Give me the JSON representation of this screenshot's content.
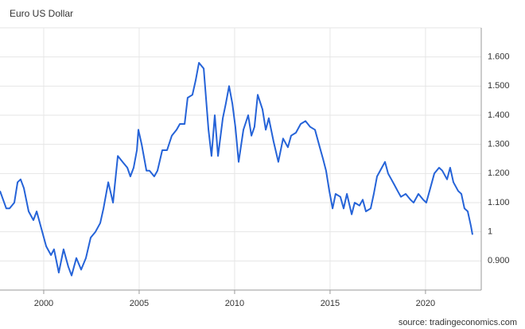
{
  "chart_data": {
    "type": "line",
    "title": "Euro US Dollar",
    "source": "source: tradingeconomics.com",
    "x": [
      1997.71,
      1998.04,
      1998.21,
      1998.46,
      1998.63,
      1998.79,
      1998.96,
      1999.21,
      1999.46,
      1999.63,
      1999.88,
      2000.13,
      2000.38,
      2000.54,
      2000.79,
      2001.04,
      2001.29,
      2001.46,
      2001.71,
      2001.96,
      2002.21,
      2002.46,
      2002.71,
      2002.96,
      2003.13,
      2003.38,
      2003.63,
      2003.88,
      2004.13,
      2004.38,
      2004.54,
      2004.71,
      2004.88,
      2004.96,
      2005.13,
      2005.38,
      2005.54,
      2005.79,
      2005.96,
      2006.21,
      2006.46,
      2006.71,
      2006.96,
      2007.13,
      2007.38,
      2007.54,
      2007.79,
      2007.96,
      2008.13,
      2008.38,
      2008.63,
      2008.79,
      2008.96,
      2009.13,
      2009.38,
      2009.54,
      2009.71,
      2009.88,
      2010.04,
      2010.21,
      2010.46,
      2010.71,
      2010.88,
      2011.04,
      2011.21,
      2011.46,
      2011.63,
      2011.79,
      2012.04,
      2012.29,
      2012.54,
      2012.79,
      2012.96,
      2013.21,
      2013.46,
      2013.71,
      2013.96,
      2014.21,
      2014.46,
      2014.63,
      2014.79,
      2014.96,
      2015.13,
      2015.29,
      2015.54,
      2015.71,
      2015.88,
      2016.13,
      2016.29,
      2016.54,
      2016.71,
      2016.88,
      2017.13,
      2017.29,
      2017.46,
      2017.71,
      2017.88,
      2018.04,
      2018.21,
      2018.38,
      2018.54,
      2018.71,
      2018.96,
      2019.21,
      2019.38,
      2019.63,
      2019.88,
      2020.04,
      2020.21,
      2020.46,
      2020.71,
      2020.88,
      2021.13,
      2021.29,
      2021.46,
      2021.71,
      2021.88,
      2022.04,
      2022.21,
      2022.38,
      2022.46
    ],
    "series": [
      {
        "name": "Euro US Dollar",
        "color": "#2563d8",
        "values": [
          1.14,
          1.08,
          1.08,
          1.1,
          1.17,
          1.18,
          1.15,
          1.07,
          1.04,
          1.07,
          1.01,
          0.95,
          0.92,
          0.94,
          0.86,
          0.94,
          0.88,
          0.85,
          0.91,
          0.87,
          0.91,
          0.98,
          1.0,
          1.03,
          1.08,
          1.17,
          1.1,
          1.26,
          1.24,
          1.22,
          1.19,
          1.22,
          1.28,
          1.35,
          1.3,
          1.21,
          1.21,
          1.19,
          1.21,
          1.28,
          1.28,
          1.33,
          1.35,
          1.37,
          1.37,
          1.46,
          1.47,
          1.52,
          1.58,
          1.56,
          1.35,
          1.26,
          1.4,
          1.26,
          1.39,
          1.44,
          1.5,
          1.44,
          1.36,
          1.24,
          1.35,
          1.4,
          1.33,
          1.36,
          1.47,
          1.42,
          1.35,
          1.39,
          1.31,
          1.24,
          1.32,
          1.29,
          1.33,
          1.34,
          1.37,
          1.38,
          1.36,
          1.35,
          1.29,
          1.25,
          1.21,
          1.14,
          1.08,
          1.13,
          1.12,
          1.08,
          1.13,
          1.06,
          1.1,
          1.09,
          1.11,
          1.07,
          1.08,
          1.13,
          1.19,
          1.22,
          1.24,
          1.2,
          1.18,
          1.16,
          1.14,
          1.12,
          1.13,
          1.11,
          1.1,
          1.13,
          1.11,
          1.1,
          1.14,
          1.2,
          1.22,
          1.21,
          1.18,
          1.22,
          1.17,
          1.14,
          1.13,
          1.08,
          1.07,
          1.02,
          0.99
        ]
      }
    ],
    "xlim": [
      1997.71,
      2022.92
    ],
    "xticks": [
      2000,
      2005,
      2010,
      2015,
      2020
    ],
    "ylim": [
      0.8,
      1.7
    ],
    "yticks": [
      {
        "value": 0.9,
        "label": "0.900"
      },
      1,
      {
        "value": 1.1,
        "label": "1.100"
      },
      {
        "value": 1.2,
        "label": "1.200"
      },
      {
        "value": 1.3,
        "label": "1.300"
      },
      {
        "value": 1.4,
        "label": "1.400"
      },
      {
        "value": 1.5,
        "label": "1.500"
      },
      {
        "value": 1.6,
        "label": "1.600"
      }
    ],
    "grid": true
  }
}
